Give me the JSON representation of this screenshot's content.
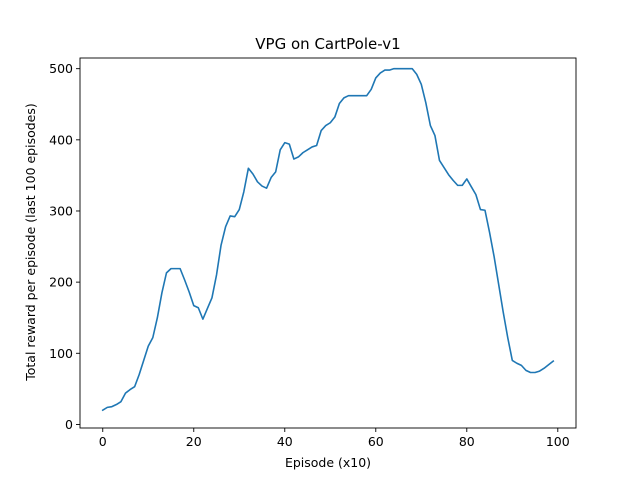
{
  "chart_data": {
    "type": "line",
    "title": "VPG on CartPole-v1",
    "xlabel": "Episode (x10)",
    "ylabel": "Total reward per episode (last 100 episodes)",
    "xlim": [
      -5,
      104
    ],
    "ylim": [
      -5,
      515
    ],
    "xticks": [
      0,
      20,
      40,
      60,
      80,
      100
    ],
    "yticks": [
      0,
      100,
      200,
      300,
      400,
      500
    ],
    "grid": false,
    "color": "#1f77b4",
    "series": [
      {
        "x": [
          0,
          1,
          2,
          3,
          4,
          5,
          6,
          7,
          8,
          9,
          10,
          11,
          12,
          13,
          14,
          15,
          16,
          17,
          18,
          19,
          20,
          21,
          22,
          23,
          24,
          25,
          26,
          27,
          28,
          29,
          30,
          31,
          32,
          33,
          34,
          35,
          36,
          37,
          38,
          39,
          40,
          41,
          42,
          43,
          44,
          45,
          46,
          47,
          48,
          49,
          50,
          51,
          52,
          53,
          54,
          55,
          56,
          57,
          58,
          59,
          60,
          61,
          62,
          63,
          64,
          65,
          66,
          67,
          68,
          69,
          70,
          71,
          72,
          73,
          74,
          75,
          76,
          77,
          78,
          79,
          80,
          81,
          82,
          83,
          84,
          85,
          86,
          87,
          88,
          89,
          90,
          91,
          92,
          93,
          94,
          95,
          96,
          97,
          98,
          99
        ],
        "y": [
          20,
          24,
          25,
          28,
          32,
          44,
          49,
          53,
          70,
          90,
          110,
          122,
          150,
          185,
          213,
          219,
          219,
          219,
          203,
          186,
          167,
          164,
          148,
          163,
          178,
          210,
          252,
          278,
          293,
          292,
          302,
          327,
          360,
          352,
          341,
          335,
          332,
          347,
          355,
          386,
          396,
          394,
          373,
          376,
          382,
          386,
          390,
          392,
          413,
          420,
          424,
          432,
          451,
          459,
          462,
          462,
          462,
          462,
          462,
          471,
          487,
          494,
          498,
          498,
          500,
          500,
          500,
          500,
          500,
          492,
          478,
          452,
          420,
          406,
          371,
          361,
          351,
          343,
          336,
          336,
          345,
          334,
          323,
          302,
          301,
          270,
          236,
          197,
          158,
          122,
          90,
          86,
          83,
          76,
          73,
          73,
          75,
          79,
          84,
          89
        ]
      }
    ]
  }
}
